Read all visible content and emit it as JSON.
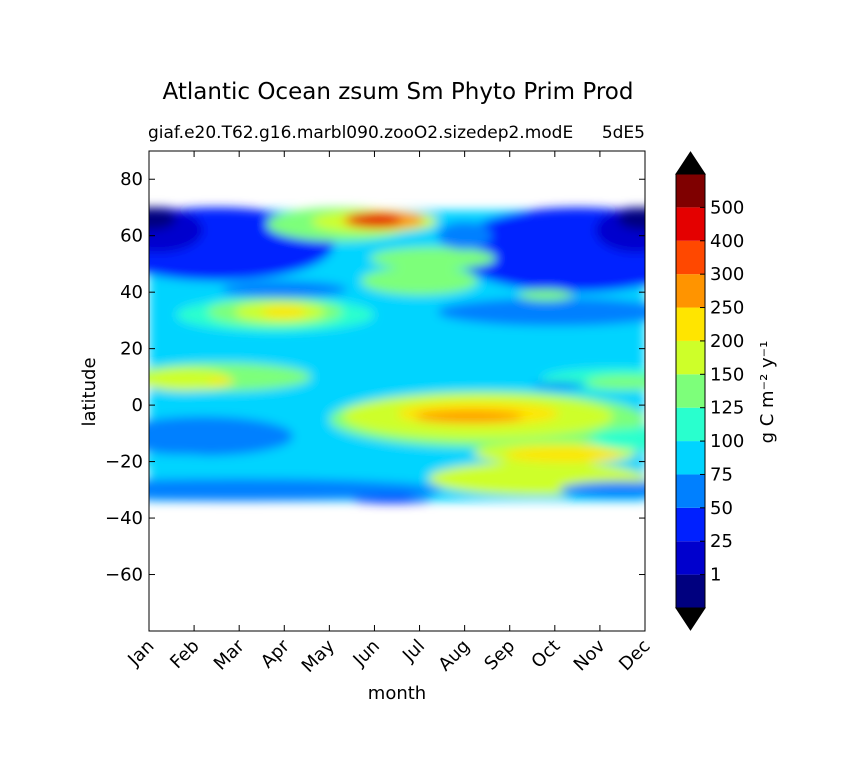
{
  "chart_data": {
    "type": "heatmap",
    "subtype": "filled-contour",
    "title": "Atlantic Ocean zsum Sm Phyto Prim Prod",
    "subtitle": "giaf.e20.T62.g16.marbl090.zooO2.sizedep2.modE",
    "subtitle_right": "5dE5",
    "xlabel": "month",
    "ylabel": "latitude",
    "x_tick_labels": [
      "Jan",
      "Feb",
      "Mar",
      "Apr",
      "May",
      "Jun",
      "Jul",
      "Aug",
      "Sep",
      "Oct",
      "Nov",
      "Dec"
    ],
    "x_range": [
      0,
      11
    ],
    "y_range": [
      -80,
      90
    ],
    "y_ticks": [
      80,
      60,
      40,
      20,
      0,
      -20,
      -40,
      -60
    ],
    "y_tick_labels": [
      "80",
      "60",
      "40",
      "20",
      "0",
      "−20",
      "−40",
      "−60"
    ],
    "data_lat_range": [
      -34,
      69
    ],
    "colorbar": {
      "label": "g C m⁻² y⁻¹",
      "levels": [
        "1",
        "25",
        "50",
        "75",
        "100",
        "125",
        "150",
        "200",
        "250",
        "300",
        "400",
        "500"
      ],
      "colors": [
        "#00007f",
        "#0000cd",
        "#0020ff",
        "#0080ff",
        "#00d4ff",
        "#29ffce",
        "#7dff7a",
        "#ceff29",
        "#ffe500",
        "#ff9400",
        "#ff4800",
        "#e40000",
        "#7f0000"
      ],
      "extend": "both",
      "extend_colors": [
        "#000000",
        "#000000"
      ]
    },
    "grid": false
  }
}
